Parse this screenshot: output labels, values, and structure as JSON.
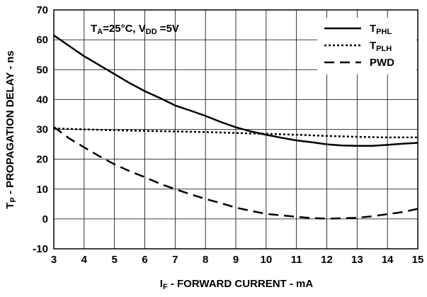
{
  "chart_data": {
    "type": "line",
    "xlabel": {
      "main": "I",
      "sub": "F",
      "rest": " - FORWARD CURRENT - mA"
    },
    "ylabel": {
      "main": "T",
      "sub": "P",
      "rest": " - PROPAGATION DELAY - ns"
    },
    "annotation": {
      "p1": "T",
      "s1": "A",
      "p2": "=25°C, V",
      "s2": "DD",
      "p3": " =5V"
    },
    "xlim": [
      3,
      15
    ],
    "ylim": [
      -10,
      70
    ],
    "xticks": [
      "3",
      "4",
      "5",
      "6",
      "7",
      "8",
      "9",
      "10",
      "11",
      "12",
      "13",
      "14",
      "15"
    ],
    "yticks": [
      "-10",
      "0",
      "10",
      "20",
      "30",
      "40",
      "50",
      "60",
      "70"
    ],
    "grid": true,
    "legend_position": "top-right",
    "series": [
      {
        "name": {
          "main": "T",
          "sub": "PHL"
        },
        "style": "solid",
        "x": [
          3,
          3.5,
          4,
          4.5,
          5,
          5.5,
          6,
          6.5,
          7,
          7.5,
          8,
          8.5,
          9,
          9.5,
          10,
          10.5,
          11,
          11.5,
          12,
          12.5,
          13,
          13.5,
          14,
          14.5,
          15
        ],
        "y": [
          61.5,
          58,
          54.5,
          51.5,
          48.5,
          45.5,
          42.8,
          40.5,
          38,
          36.3,
          34.5,
          32.5,
          30.7,
          29.3,
          28.2,
          27.2,
          26.3,
          25.7,
          25,
          24.6,
          24.5,
          24.5,
          24.8,
          25.2,
          25.5
        ]
      },
      {
        "name": {
          "main": "T",
          "sub": "PLH"
        },
        "style": "dotted",
        "x": [
          3,
          4,
          5,
          6,
          7,
          8,
          9,
          10,
          11,
          12,
          13,
          14,
          15
        ],
        "y": [
          30.3,
          30,
          29.7,
          29.5,
          29.3,
          29.1,
          28.8,
          28.5,
          28.2,
          27.8,
          27.5,
          27.3,
          27.3
        ]
      },
      {
        "name": {
          "main": "PWD",
          "sub": ""
        },
        "style": "dashed",
        "x": [
          3,
          3.5,
          4,
          4.5,
          5,
          5.5,
          6,
          6.5,
          7,
          7.5,
          8,
          8.5,
          9,
          9.5,
          10,
          10.5,
          11,
          11.5,
          12,
          12.5,
          13,
          13.5,
          14,
          14.5,
          15
        ],
        "y": [
          30.8,
          27,
          24,
          21,
          18.3,
          16,
          14,
          11.8,
          10,
          8.3,
          6.7,
          5.3,
          3.8,
          2.7,
          1.7,
          1.2,
          0.7,
          0.3,
          0.1,
          0.2,
          0.4,
          0.9,
          1.6,
          2.3,
          3.4
        ]
      }
    ]
  }
}
